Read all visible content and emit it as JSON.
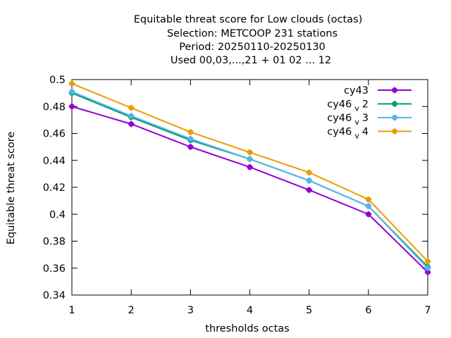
{
  "chart_data": {
    "type": "line",
    "title_lines": [
      "Equitable threat score  for Low clouds (octas)",
      "Selection: METCOOP    231 stations",
      "Period: 20250110-20250130",
      "Used  00,03,...,21  + 01 02 ... 12"
    ],
    "xlabel": "thresholds octas",
    "ylabel": "Equitable threat score",
    "x": [
      1,
      2,
      3,
      4,
      5,
      6,
      7
    ],
    "xlim": [
      1,
      7
    ],
    "ylim": [
      0.34,
      0.5
    ],
    "xticks": [
      "1",
      "2",
      "3",
      "4",
      "5",
      "6",
      "7"
    ],
    "yticks": [
      "0.34",
      "0.36",
      "0.38",
      "0.4",
      "0.42",
      "0.44",
      "0.46",
      "0.48",
      "0.5"
    ],
    "legend_position": "top-right",
    "grid": false,
    "series": [
      {
        "name": "cy43",
        "name_base": "cy43",
        "name_sub": "",
        "name_suffix": "",
        "color": "#9400d3",
        "values": [
          0.48,
          0.467,
          0.45,
          0.435,
          0.418,
          0.4,
          0.357
        ]
      },
      {
        "name": "cy46_v2",
        "name_base": "cy46",
        "name_sub": "v",
        "name_suffix": "2",
        "color": "#009e73",
        "values": [
          0.49,
          0.472,
          0.455,
          0.441,
          0.425,
          0.406,
          0.361
        ]
      },
      {
        "name": "cy46_v3",
        "name_base": "cy46",
        "name_sub": "v",
        "name_suffix": "3",
        "color": "#56b4e9",
        "values": [
          0.491,
          0.473,
          0.456,
          0.441,
          0.425,
          0.406,
          0.36
        ]
      },
      {
        "name": "cy46_v4",
        "name_base": "cy46",
        "name_sub": "v",
        "name_suffix": "4",
        "color": "#e69f00",
        "values": [
          0.497,
          0.479,
          0.461,
          0.446,
          0.431,
          0.411,
          0.365
        ]
      }
    ]
  }
}
